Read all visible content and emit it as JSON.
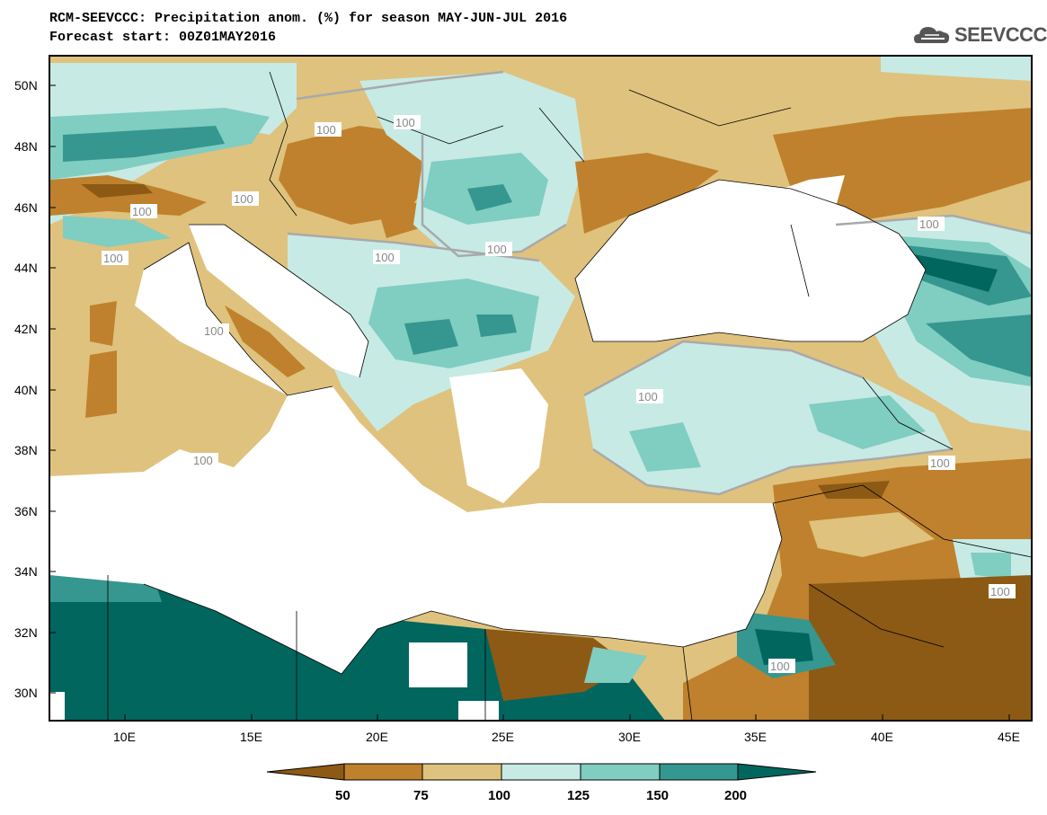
{
  "header": {
    "title_line1": "RCM-SEEVCCC: Precipitation anom. (%) for season MAY-JUN-JUL 2016",
    "title_line2": "Forecast start: 00Z01MAY2016",
    "logo_text": "SEEVCCC"
  },
  "axes": {
    "x_ticks": [
      "10E",
      "15E",
      "20E",
      "25E",
      "30E",
      "35E",
      "40E",
      "45E"
    ],
    "y_ticks": [
      "50N",
      "48N",
      "46N",
      "44N",
      "42N",
      "40N",
      "38N",
      "36N",
      "34N",
      "32N",
      "30N"
    ]
  },
  "contour_labels": [
    "100",
    "100",
    "100",
    "100",
    "100",
    "100",
    "100",
    "100",
    "100",
    "100",
    "100",
    "100",
    "100",
    "100"
  ],
  "colorbar": {
    "ticks": [
      "50",
      "75",
      "100",
      "125",
      "150",
      "200"
    ],
    "colors": [
      "#8c5a14",
      "#bf812d",
      "#dfc27d",
      "#c7eae5",
      "#80cdc1",
      "#35978f",
      "#01665e"
    ]
  }
}
